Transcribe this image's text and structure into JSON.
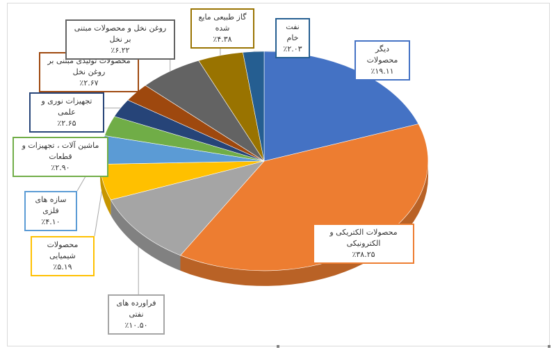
{
  "chart_data": {
    "type": "pie",
    "title": "",
    "slices": [
      {
        "key": "other",
        "name": "دیگر محصولات",
        "value": 19.11,
        "label": "٪۱۹.۱۱",
        "color": "#4472c4"
      },
      {
        "key": "electric",
        "name": "محصولات الکتریکی و الکترونیکی",
        "value": 38.25,
        "label": "٪۳۸.۲۵",
        "color": "#ed7d31"
      },
      {
        "key": "oilprod",
        "name": "فراورده های نفتی",
        "value": 10.5,
        "label": "٪۱۰.۵۰",
        "color": "#a5a5a5"
      },
      {
        "key": "chem",
        "name": "محصولات شیمیایی",
        "value": 5.19,
        "label": "٪۵.۱۹",
        "color": "#ffc000"
      },
      {
        "key": "metal",
        "name": "سازه های فلزی",
        "value": 4.1,
        "label": "٪۴.۱۰",
        "color": "#5b9bd5"
      },
      {
        "key": "machine",
        "name": "ماشین آلات ، تجهیزات و قطعات",
        "value": 2.9,
        "label": "٪۲.۹۰",
        "color": "#70ad47"
      },
      {
        "key": "optical",
        "name": "تجهیزات نوری و علمی",
        "value": 2.65,
        "label": "٪۲.۶۵",
        "color": "#264478"
      },
      {
        "key": "palmprod",
        "name": "محصولات تولیدی مبتنی بر روغن نخل",
        "value": 2.67,
        "label": "٪۲.۶۷",
        "color": "#9e480e"
      },
      {
        "key": "palm",
        "name": "روغن نخل و محصولات مبتنی بر نخل",
        "value": 6.22,
        "label": "٪۶.۲۲",
        "color": "#636363"
      },
      {
        "key": "lng",
        "name": "گاز طبیعی مایع شده",
        "value": 4.38,
        "label": "٪۴.۳۸",
        "color": "#997300"
      },
      {
        "key": "crude",
        "name": "نفت خام",
        "value": 2.03,
        "label": "٪۲.۰۳",
        "color": "#255e91"
      }
    ]
  }
}
